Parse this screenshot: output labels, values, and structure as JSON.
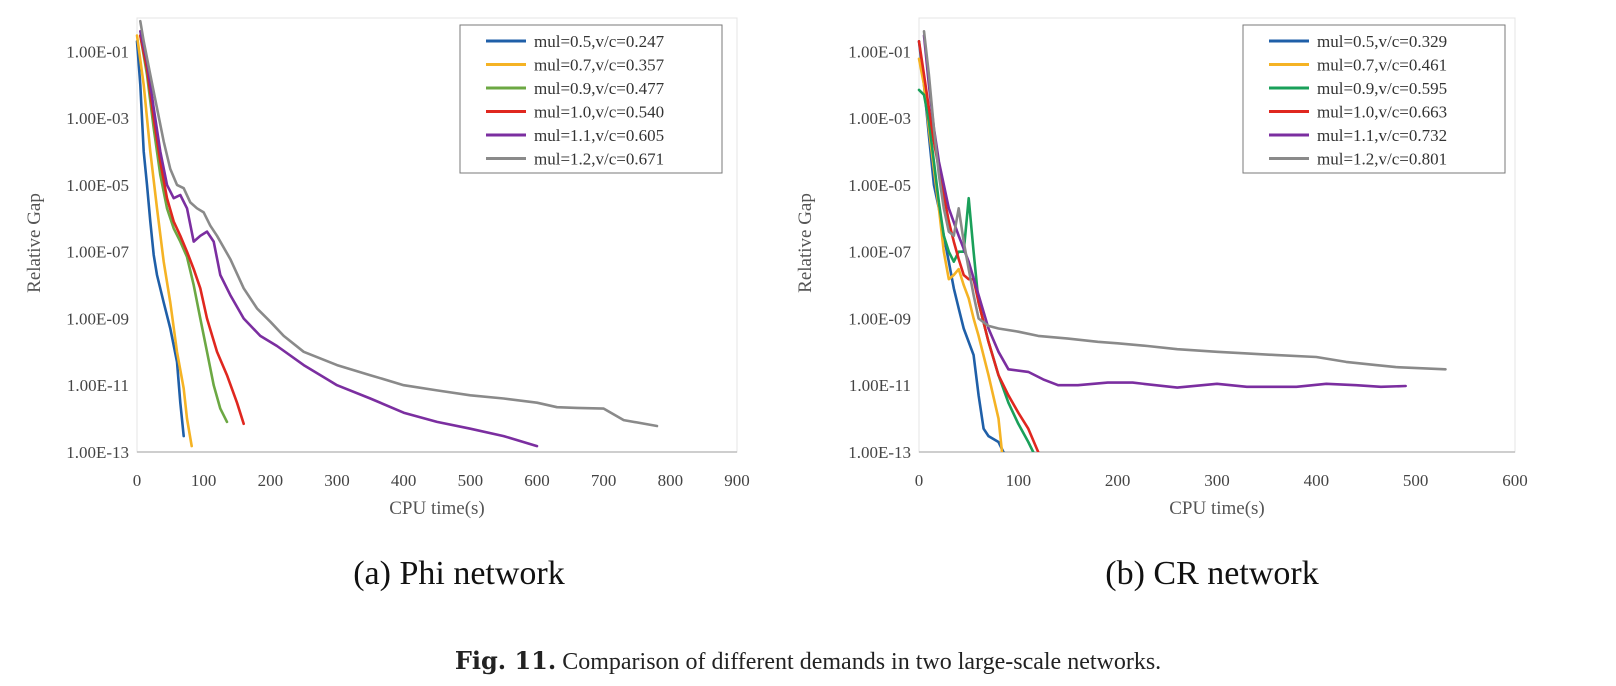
{
  "chart_data": [
    {
      "type": "line",
      "panel_caption": "(a) Phi network",
      "xlabel": "CPU time(s)",
      "ylabel": "Relative Gap",
      "y_scale": "log",
      "xlim": [
        0,
        900
      ],
      "ylim": [
        1e-13,
        1
      ],
      "x_ticks": [
        "0",
        "100",
        "200",
        "300",
        "400",
        "500",
        "600",
        "700",
        "800",
        "900"
      ],
      "y_ticks": [
        "1.00E-01",
        "1.00E-03",
        "1.00E-05",
        "1.00E-07",
        "1.00E-09",
        "1.00E-11",
        "1.00E-13"
      ],
      "legend_position": "top-right",
      "series": [
        {
          "name": "mul=0.5,v/c=0.247",
          "color": "#1f5fa8",
          "x": [
            0,
            5,
            10,
            15,
            20,
            25,
            30,
            40,
            50,
            60,
            65,
            70
          ],
          "y": [
            0.2,
            0.01,
            0.0001,
            1e-05,
            8e-07,
            8e-08,
            2e-08,
            3e-09,
            5e-10,
            5e-11,
            3e-12,
            3e-13
          ]
        },
        {
          "name": "mul=0.7,v/c=0.357",
          "color": "#f5b324",
          "x": [
            0,
            10,
            20,
            30,
            40,
            50,
            60,
            70,
            75,
            82
          ],
          "y": [
            0.3,
            0.01,
            0.0001,
            2e-06,
            5e-08,
            3e-09,
            1e-10,
            8e-12,
            1e-12,
            1.5e-13
          ]
        },
        {
          "name": "mul=0.9,v/c=0.477",
          "color": "#6ca843",
          "x": [
            5,
            15,
            25,
            35,
            45,
            55,
            65,
            75,
            85,
            95,
            105,
            115,
            125,
            135
          ],
          "y": [
            0.3,
            0.02,
            0.0005,
            2e-05,
            2e-06,
            5e-07,
            2e-07,
            7e-08,
            1e-08,
            1e-09,
            1e-10,
            1e-11,
            2e-12,
            8e-13
          ]
        },
        {
          "name": "mul=1.0,v/c=0.540",
          "color": "#e0271f",
          "x": [
            5,
            15,
            25,
            35,
            45,
            55,
            65,
            75,
            85,
            95,
            105,
            120,
            135,
            150,
            160
          ],
          "y": [
            0.3,
            0.03,
            0.001,
            5e-05,
            4e-06,
            8e-07,
            3e-07,
            1e-07,
            3e-08,
            8e-09,
            1e-09,
            1e-10,
            2e-11,
            3e-12,
            7e-13
          ]
        },
        {
          "name": "mul=1.1,v/c=0.605",
          "color": "#7b2ea0",
          "x": [
            5,
            15,
            25,
            35,
            45,
            55,
            65,
            75,
            85,
            95,
            105,
            115,
            125,
            140,
            160,
            185,
            210,
            250,
            300,
            350,
            400,
            450,
            500,
            550,
            600
          ],
          "y": [
            0.4,
            0.05,
            0.002,
            0.0001,
            1e-05,
            4e-06,
            5e-06,
            2e-06,
            2e-07,
            3e-07,
            4e-07,
            2e-07,
            2e-08,
            5e-09,
            1e-09,
            3e-10,
            1.5e-10,
            4e-11,
            1e-11,
            4e-12,
            1.5e-12,
            8e-13,
            5e-13,
            3e-13,
            1.5e-13
          ]
        },
        {
          "name": "mul=1.2,v/c=0.671",
          "color": "#8a8a8a",
          "x": [
            5,
            10,
            20,
            30,
            40,
            50,
            60,
            70,
            80,
            90,
            100,
            110,
            120,
            140,
            160,
            180,
            200,
            220,
            250,
            300,
            350,
            400,
            450,
            500,
            550,
            600,
            630,
            660,
            700,
            730,
            780
          ],
          "y": [
            0.8,
            0.2,
            0.02,
            0.002,
            0.0002,
            3e-05,
            1e-05,
            8e-06,
            3e-06,
            2e-06,
            1.5e-06,
            6e-07,
            3e-07,
            6e-08,
            8e-09,
            2e-09,
            8e-10,
            3e-10,
            1e-10,
            4e-11,
            2e-11,
            1e-11,
            7e-12,
            5e-12,
            4e-12,
            3e-12,
            2.2e-12,
            2.1e-12,
            2e-12,
            9e-13,
            6e-13
          ]
        }
      ]
    },
    {
      "type": "line",
      "panel_caption": "(b) CR network",
      "xlabel": "CPU time(s)",
      "ylabel": "Relative Gap",
      "y_scale": "log",
      "xlim": [
        0,
        600
      ],
      "ylim": [
        1e-13,
        1
      ],
      "x_ticks": [
        "0",
        "100",
        "200",
        "300",
        "400",
        "500",
        "600"
      ],
      "y_ticks": [
        "1.00E-01",
        "1.00E-03",
        "1.00E-05",
        "1.00E-07",
        "1.00E-09",
        "1.00E-11",
        "1.00E-13"
      ],
      "legend_position": "top-right",
      "series": [
        {
          "name": "mul=0.5,v/c=0.329",
          "color": "#1f5fa8",
          "x": [
            0,
            5,
            10,
            15,
            20,
            25,
            30,
            35,
            40,
            45,
            55,
            60,
            65,
            70,
            80,
            85
          ],
          "y": [
            0.2,
            0.01,
            0.0003,
            1e-05,
            2e-06,
            3e-07,
            5e-08,
            8e-09,
            2e-09,
            5e-10,
            8e-11,
            5e-12,
            5e-13,
            3e-13,
            2e-13,
            1e-13
          ]
        },
        {
          "name": "mul=0.7,v/c=0.461",
          "color": "#f5b324",
          "x": [
            0,
            5,
            10,
            15,
            20,
            25,
            30,
            35,
            40,
            45,
            50,
            55,
            60,
            70,
            80,
            85
          ],
          "y": [
            0.06,
            0.01,
            0.0005,
            3e-05,
            2e-06,
            1e-07,
            1.5e-08,
            2e-08,
            3e-08,
            1e-08,
            4e-09,
            1e-09,
            3e-10,
            2e-11,
            1e-12,
            4e-14
          ]
        },
        {
          "name": "mul=0.9,v/c=0.595",
          "color": "#1aa05a",
          "x": [
            0,
            5,
            10,
            15,
            20,
            25,
            30,
            35,
            40,
            45,
            50,
            55,
            60,
            70,
            80,
            90,
            100,
            110,
            115
          ],
          "y": [
            0.007,
            0.005,
            0.0008,
            5e-05,
            3e-06,
            3e-07,
            1e-07,
            5e-08,
            1e-07,
            1e-07,
            4e-06,
            1e-07,
            3e-09,
            2e-10,
            2e-11,
            3e-12,
            7e-13,
            2e-13,
            1e-13
          ]
        },
        {
          "name": "mul=1.0,v/c=0.663",
          "color": "#e0271f",
          "x": [
            0,
            5,
            10,
            15,
            20,
            25,
            30,
            35,
            40,
            45,
            50,
            55,
            60,
            70,
            80,
            90,
            100,
            110,
            120
          ],
          "y": [
            0.2,
            0.02,
            0.002,
            0.0002,
            3e-05,
            5e-06,
            8e-07,
            2e-07,
            6e-08,
            2e-08,
            1.5e-08,
            1.5e-08,
            3e-09,
            2e-10,
            2e-11,
            5e-12,
            1.5e-12,
            5e-13,
            1e-13
          ]
        },
        {
          "name": "mul=1.1,v/c=0.732",
          "color": "#7b2ea0",
          "x": [
            5,
            10,
            15,
            20,
            30,
            40,
            50,
            60,
            70,
            80,
            90,
            110,
            125,
            140,
            160,
            190,
            215,
            260,
            300,
            330,
            380,
            410,
            440,
            465,
            490
          ],
          "y": [
            0.3,
            0.01,
            0.0005,
            5e-05,
            2e-06,
            3e-07,
            5e-08,
            5e-09,
            5e-10,
            1e-10,
            3e-11,
            2.5e-11,
            1.5e-11,
            1e-11,
            1e-11,
            1.2e-11,
            1.2e-11,
            8.5e-12,
            1.1e-11,
            9e-12,
            9e-12,
            1.1e-11,
            1e-11,
            9e-12,
            9.5e-12
          ]
        },
        {
          "name": "mul=1.2,v/c=0.801",
          "color": "#8a8a8a",
          "x": [
            5,
            10,
            15,
            20,
            25,
            30,
            35,
            40,
            45,
            50,
            55,
            60,
            70,
            80,
            100,
            120,
            150,
            180,
            200,
            230,
            260,
            300,
            330,
            360,
            400,
            430,
            460,
            480,
            530
          ],
          "y": [
            0.4,
            0.02,
            0.0005,
            2e-05,
            2e-06,
            4e-07,
            3e-07,
            2e-06,
            2e-07,
            3e-08,
            5e-09,
            1e-09,
            6e-10,
            5e-10,
            4e-10,
            3e-10,
            2.5e-10,
            2e-10,
            1.8e-10,
            1.5e-10,
            1.2e-10,
            1e-10,
            9e-11,
            8e-11,
            7e-11,
            5e-11,
            4e-11,
            3.5e-11,
            3e-11
          ]
        }
      ]
    }
  ],
  "figure_caption": {
    "label": "Fig. 11.",
    "text": "Comparison of different demands in two large-scale networks."
  }
}
